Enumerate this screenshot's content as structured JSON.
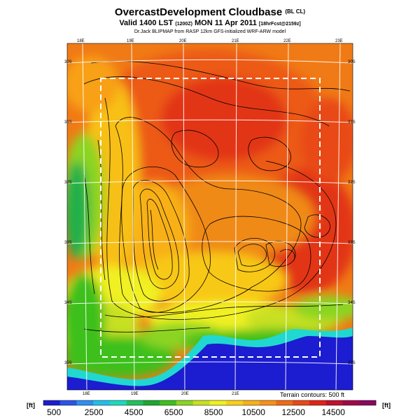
{
  "title": {
    "main": "OvercastDevelopment Cloudbase",
    "main_suffix": "(BL CL)",
    "valid_line": "Valid 1400 LST",
    "valid_utc": "(1200Z)",
    "valid_date": "MON 11 Apr 2011",
    "forecast": "[18hrFcst@2159z]",
    "credit": "Dr.Jack BLIPMAP from RASP 12km GFS-initialized WRF-ARW model"
  },
  "map_labels": {
    "lon_top": [
      "18E",
      "19E",
      "20E",
      "21E",
      "22E",
      "23E"
    ],
    "lon_bottom": [
      "18E",
      "19E",
      "20E",
      "21E"
    ],
    "lat_left": [
      "30S",
      "31S",
      "32S",
      "33S",
      "34S",
      "35S"
    ],
    "lat_right": [
      "30S",
      "31S",
      "32S",
      "33S",
      "34S",
      "35S"
    ]
  },
  "terrain_note": "Terrain contours: 500 ft",
  "colorbar": {
    "unit": "[ft]",
    "ticks": [
      "500",
      "2500",
      "4500",
      "6500",
      "8500",
      "10500",
      "12500",
      "14500"
    ],
    "colors": [
      "#1c1cd0",
      "#2a55e8",
      "#2f8ef2",
      "#20c0e8",
      "#1cd8c0",
      "#22c060",
      "#1aa830",
      "#3cc01c",
      "#8cd420",
      "#c8e020",
      "#f0f020",
      "#f8d018",
      "#f8b018",
      "#f89018",
      "#f06a14",
      "#e84818",
      "#e02418",
      "#c01030",
      "#a00848",
      "#880860"
    ]
  }
}
